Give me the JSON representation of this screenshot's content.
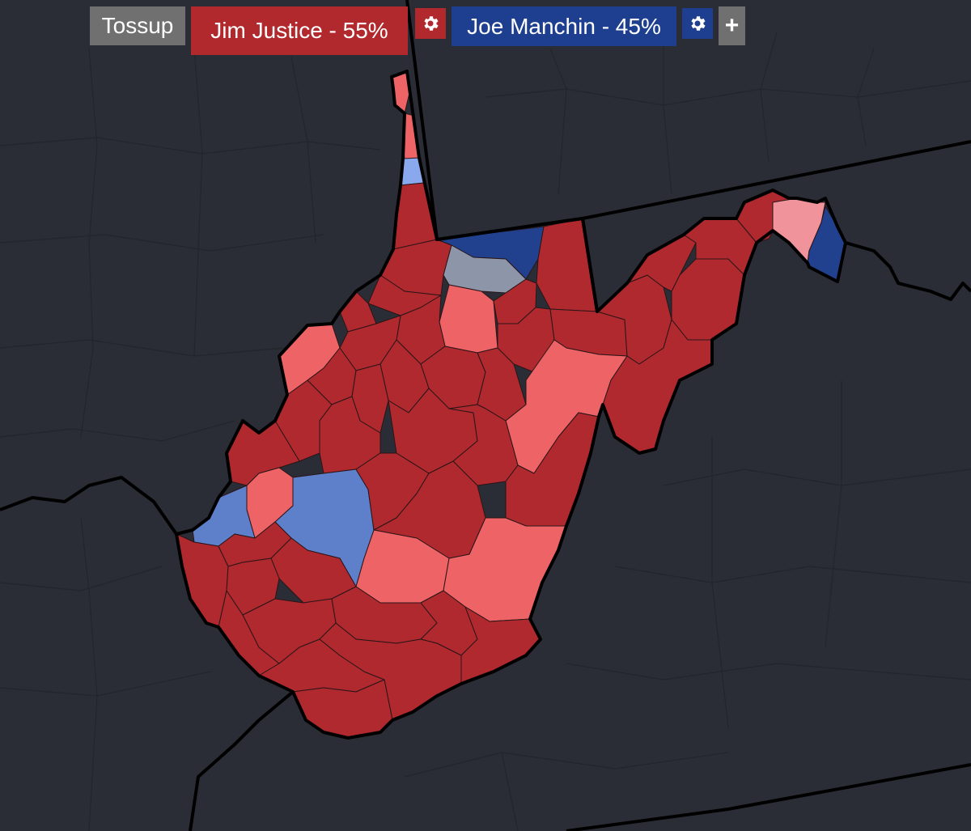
{
  "toolbar": {
    "tossup_label": "Tossup",
    "candidates": [
      {
        "label": "Jim Justice - 55%",
        "color": "#b1292d",
        "settings_icon": "gear-icon"
      },
      {
        "label": "Joe Manchin - 45%",
        "color": "#1e3f8f",
        "settings_icon": "gear-icon"
      }
    ],
    "add_label": "+",
    "tossup_color": "#707070"
  },
  "map": {
    "background_color": "#2a2d35",
    "state_border_color": "#000000",
    "rating_colors": {
      "safe_r": "#b0292e",
      "lean_r": "#ee6466",
      "tilt_r": "#f0939a",
      "safe_d": "#21418e",
      "lean_d": "#5e7fca",
      "tilt_d": "#8aa8ee",
      "tossup": "#8d95a8"
    }
  }
}
